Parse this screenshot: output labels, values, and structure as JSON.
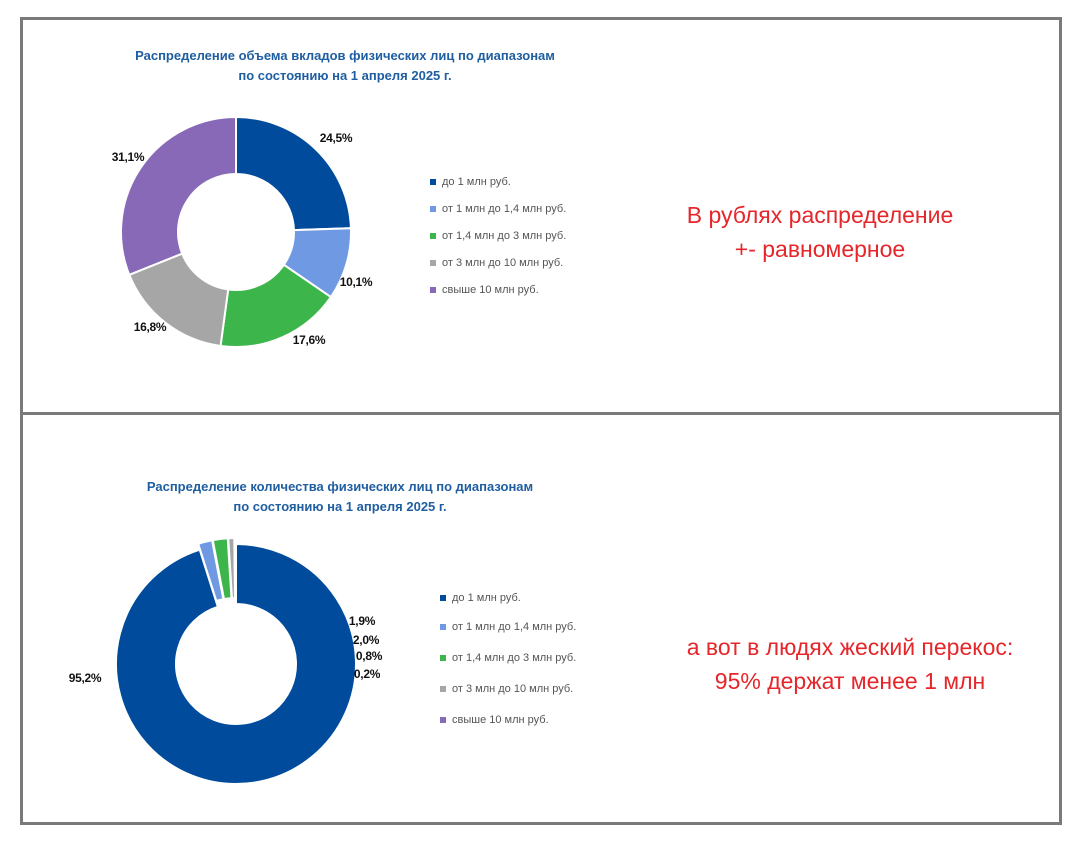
{
  "legend": {
    "items": [
      {
        "label": "до 1 млн руб.",
        "color": "#004b9b"
      },
      {
        "label": "от 1 млн до 1,4 млн руб.",
        "color": "#6f9ae3"
      },
      {
        "label": "от 1,4 млн до 3 млн руб.",
        "color": "#3cb54a"
      },
      {
        "label": "от 3 млн до 10 млн руб.",
        "color": "#a6a6a6"
      },
      {
        "label": "свыше 10 млн руб.",
        "color": "#8769b8"
      }
    ]
  },
  "chart_data": [
    {
      "type": "pie",
      "donut": true,
      "title_lines": [
        "Распределение объема вкладов физических лиц по диапазонам",
        "по состоянию на 1 апреля 2025 г."
      ],
      "categories": [
        "до 1 млн руб.",
        "от 1 млн до 1,4 млн руб.",
        "от 1,4 млн до 3 млн руб.",
        "от 3 млн до 10 млн руб.",
        "свыше 10 млн руб."
      ],
      "values": [
        24.5,
        10.1,
        17.6,
        16.8,
        31.1
      ],
      "labels": [
        "24,5%",
        "10,1%",
        "17,6%",
        "16,8%",
        "31,1%"
      ],
      "colors": [
        "#004b9b",
        "#6f9ae3",
        "#3cb54a",
        "#a6a6a6",
        "#8769b8"
      ]
    },
    {
      "type": "pie",
      "donut": true,
      "exploded": true,
      "title_lines": [
        "Распределение количества физических лиц по диапазонам",
        "по состоянию на 1 апреля 2025 г."
      ],
      "categories": [
        "до 1 млн руб.",
        "от 1 млн до 1,4 млн руб.",
        "от 1,4 млн до 3 млн руб.",
        "от 3 млн до 10 млн руб.",
        "свыше 10 млн руб."
      ],
      "values": [
        95.2,
        1.9,
        2.0,
        0.8,
        0.2
      ],
      "labels": [
        "95,2%",
        "1,9%",
        "2,0%",
        "0,8%",
        "0,2%"
      ],
      "colors": [
        "#004b9b",
        "#6f9ae3",
        "#3cb54a",
        "#a6a6a6",
        "#8769b8"
      ]
    }
  ],
  "notes": {
    "top": [
      "В рублях распределение",
      "+- равномерное"
    ],
    "bottom": [
      "а вот в людях жеский перекос:",
      "95% держат менее 1 млн"
    ]
  }
}
